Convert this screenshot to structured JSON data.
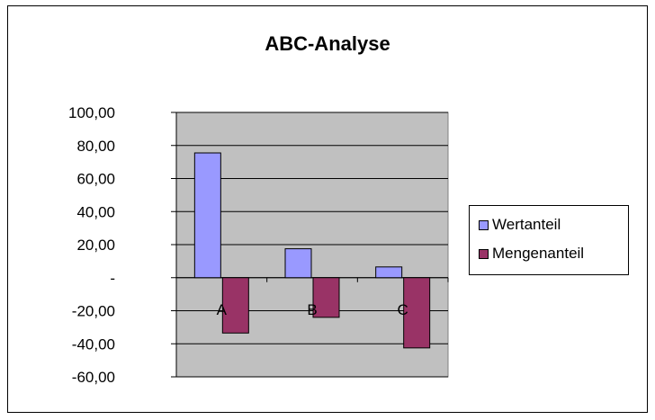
{
  "chart_data": {
    "type": "bar",
    "title": "ABC-Analyse",
    "categories": [
      "A",
      "B",
      "C"
    ],
    "series": [
      {
        "name": "Wertanteil",
        "values": [
          75.5,
          17.5,
          6.5
        ],
        "color": "#9999FF"
      },
      {
        "name": "Mengenanteil",
        "values": [
          -33.5,
          -24.0,
          -42.5
        ],
        "color": "#993366"
      }
    ],
    "ylim": [
      -60,
      100
    ],
    "yticks": [
      100,
      80,
      60,
      40,
      20,
      0,
      -20,
      -40,
      -60
    ],
    "ytick_labels": [
      "100,00",
      "80,00",
      "60,00",
      "40,00",
      "20,00",
      "-",
      "-20,00",
      "-40,00",
      "-60,00"
    ],
    "grid": true,
    "legend": "right",
    "plot_background": "#C0C0C0"
  }
}
